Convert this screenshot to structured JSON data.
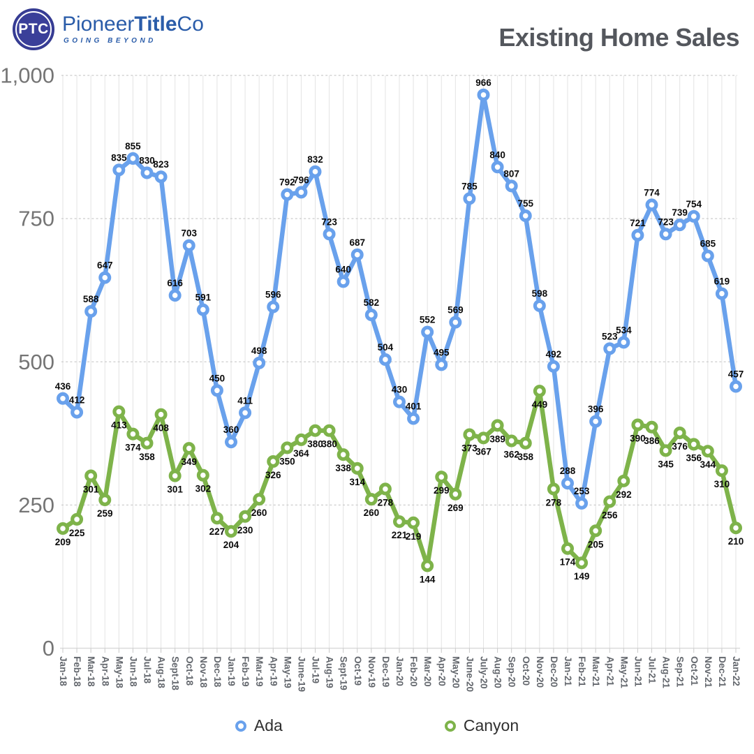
{
  "header": {
    "logo": {
      "badge": "PTC",
      "brand_pioneer": "Pioneer",
      "brand_title": "Title",
      "brand_co": "Co",
      "tagline": "GOING BEYOND"
    },
    "title": "Existing Home Sales"
  },
  "chart_data": {
    "type": "line",
    "title": "Existing Home Sales",
    "xlabel": "",
    "ylabel": "",
    "ylim": [
      0,
      1000
    ],
    "y_ticks": [
      0,
      250,
      500,
      750,
      1000
    ],
    "y_tick_labels": [
      "0",
      "250",
      "500",
      "750",
      "1,000"
    ],
    "grid": "vertical solid monthly lines, horizontal dashed lines every 250",
    "legend_position": "bottom",
    "point_markers": "white-filled rings",
    "data_labels": true,
    "categories": [
      "Jan-18",
      "Feb-18",
      "Mar-18",
      "Apr-18",
      "May-18",
      "Jun-18",
      "Jul-18",
      "Aug-18",
      "Sept-18",
      "Oct-18",
      "Nov-18",
      "Dec-18",
      "Jan-19",
      "Feb-19",
      "Mar-19",
      "Apr-19",
      "May-19",
      "June-19",
      "Jul-19",
      "Aug-19",
      "Sept-19",
      "Oct-19",
      "Nov-19",
      "Dec-19",
      "Jan-20",
      "Feb-20",
      "Mar-20",
      "Apr-20",
      "May-20",
      "June-20",
      "July-20",
      "Aug-20",
      "Sep-20",
      "Oct-20",
      "Nov-20",
      "Dec-20",
      "Jan-21",
      "Feb-21",
      "Mar-21",
      "Apr-21",
      "May-21",
      "Jun-21",
      "Jul-21",
      "Aug-21",
      "Sep-21",
      "Oct-21",
      "Nov-21",
      "Dec-21",
      "Jan-22"
    ],
    "series": [
      {
        "name": "Ada",
        "color": "#69A1EC",
        "label_position": "above",
        "values": [
          436,
          412,
          588,
          647,
          835,
          855,
          830,
          823,
          616,
          703,
          591,
          450,
          360,
          411,
          498,
          596,
          792,
          796,
          832,
          723,
          640,
          687,
          582,
          504,
          430,
          401,
          552,
          495,
          569,
          785,
          966,
          840,
          807,
          755,
          598,
          492,
          288,
          253,
          396,
          523,
          534,
          721,
          774,
          723,
          739,
          754,
          685,
          619,
          457
        ]
      },
      {
        "name": "Canyon",
        "color": "#7EB34A",
        "label_position": "below",
        "values": [
          209,
          225,
          301,
          259,
          413,
          374,
          358,
          408,
          301,
          349,
          302,
          227,
          204,
          230,
          260,
          326,
          350,
          364,
          380,
          380,
          338,
          314,
          260,
          278,
          221,
          219,
          144,
          299,
          269,
          373,
          367,
          389,
          362,
          358,
          449,
          278,
          174,
          149,
          205,
          256,
          292,
          390,
          386,
          345,
          376,
          356,
          344,
          310,
          210
        ]
      }
    ]
  },
  "legend": {
    "items": [
      {
        "label": "Ada",
        "color": "#69A1EC"
      },
      {
        "label": "Canyon",
        "color": "#7EB34A"
      }
    ]
  },
  "colors": {
    "ada_line": "#69A1EC",
    "canyon_line": "#7EB34A",
    "title_text": "#54575D",
    "logo_blue": "#2A5CA9",
    "badge_fill": "#3A3F99",
    "y_axis_text": "#757575",
    "x_axis_text": "#63676D",
    "data_label_text": "#0A0A0A",
    "vertical_grid": "#E3E3E3",
    "horizontal_grid": "#CCCCCC",
    "background": "#FFFFFF"
  }
}
